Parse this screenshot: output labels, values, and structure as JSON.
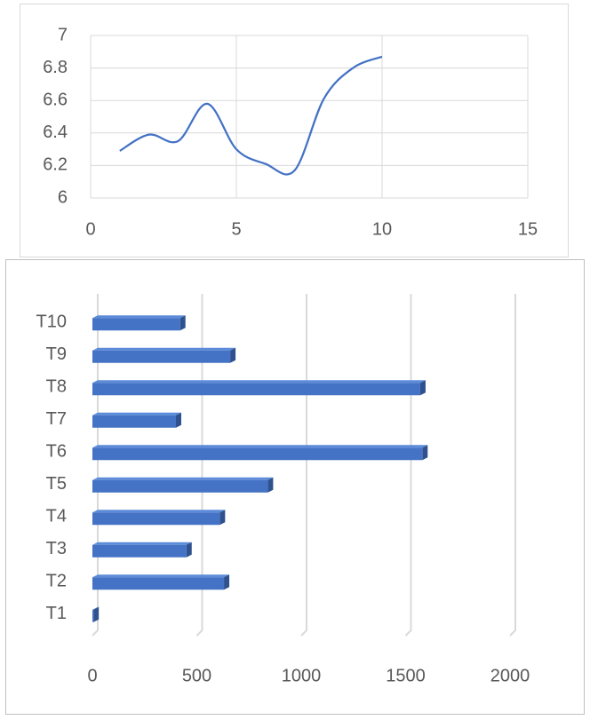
{
  "colors": {
    "line": "#4472c4",
    "bar_front": "#4472c4",
    "bar_top": "#5b8bd9",
    "bar_side": "#2f528f",
    "grid": "#d9d9d9",
    "tick_text": "#595959"
  },
  "chart_data": [
    {
      "type": "line",
      "smooth": true,
      "x": [
        1,
        2,
        3,
        4,
        5,
        6,
        7,
        8,
        9,
        10
      ],
      "y": [
        6.29,
        6.39,
        6.35,
        6.58,
        6.3,
        6.21,
        6.17,
        6.61,
        6.8,
        6.87
      ],
      "xlim": [
        0,
        15
      ],
      "ylim": [
        6,
        7
      ],
      "xticks": [
        "0",
        "5",
        "10",
        "15"
      ],
      "yticks": [
        "6",
        "6.2",
        "6.4",
        "6.6",
        "6.8",
        "7"
      ],
      "grid": true,
      "legend": "none"
    },
    {
      "type": "bar",
      "orientation": "horizontal",
      "style": "3d",
      "categories": [
        "T1",
        "T2",
        "T3",
        "T4",
        "T5",
        "T6",
        "T7",
        "T8",
        "T9",
        "T10"
      ],
      "values": [
        5,
        630,
        450,
        610,
        840,
        1580,
        400,
        1570,
        660,
        420
      ],
      "xlim": [
        0,
        2000
      ],
      "xticks": [
        "0",
        "500",
        "1000",
        "1500",
        "2000"
      ],
      "grid": true,
      "legend": "none"
    }
  ]
}
